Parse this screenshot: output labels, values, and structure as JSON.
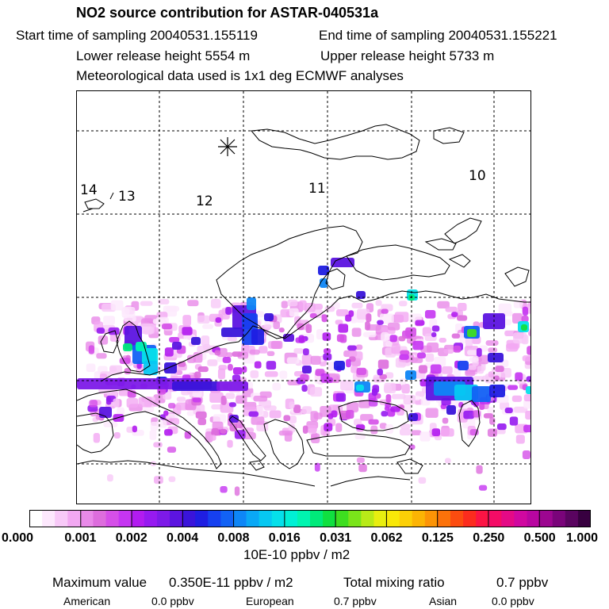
{
  "title": "NO2 source contribution for ASTAR-040531a",
  "header": {
    "start": "Start time of sampling 20040531.155119",
    "end": "End time of sampling 20040531.155221",
    "lower": "Lower release height 5554 m",
    "upper": "Upper release height 5733 m",
    "met": "Meteorological data used is 1x1 deg ECMWF analyses"
  },
  "map": {
    "trajectory_labels": [
      "14",
      "13",
      "12",
      "11",
      "10"
    ],
    "release_marker": "asterisk"
  },
  "colorbar": {
    "tick_labels": [
      "0.000",
      "0.001",
      "0.002",
      "0.004",
      "0.008",
      "0.016",
      "0.031",
      "0.062",
      "0.125",
      "0.250",
      "0.500",
      "1.000"
    ],
    "colors": [
      "#ffffff",
      "#fde8fd",
      "#f8c9f8",
      "#f2a8f2",
      "#e98ae9",
      "#dd6ddd",
      "#d54fe8",
      "#c535f2",
      "#b21cf0",
      "#961af0",
      "#7d1ae8",
      "#5c14e0",
      "#3a14da",
      "#1f1ee2",
      "#1640f0",
      "#1262f4",
      "#0e86f6",
      "#0aa8f5",
      "#06c8f2",
      "#05e0ea",
      "#00f0d5",
      "#00f5b0",
      "#00ea7a",
      "#10e040",
      "#3ede20",
      "#7ae41a",
      "#b8ea18",
      "#e8ee10",
      "#f8e808",
      "#fcd006",
      "#fcb404",
      "#fc9406",
      "#fc720a",
      "#fc4c10",
      "#fc2c1e",
      "#fc1444",
      "#f40c66",
      "#e40a86",
      "#d008a0",
      "#b806a0",
      "#9c0690",
      "#7a047a",
      "#5a0460",
      "#380040"
    ],
    "units": "10E-10 ppbv / m2"
  },
  "stats": {
    "max_label": "Maximum value",
    "max_value": "0.350E-11 ppbv / m2",
    "total_label": "Total mixing ratio",
    "total_value": "0.7 ppbv",
    "american_label": "American",
    "american_value": "0.0 ppbv",
    "european_label": "European",
    "european_value": "0.7 ppbv",
    "asian_label": "Asian",
    "asian_value": "0.0 ppbv"
  }
}
